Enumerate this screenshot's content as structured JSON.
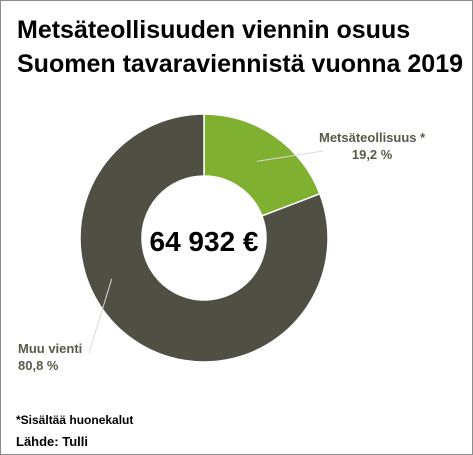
{
  "title_lines": [
    "Metsäteollisuuden viennin osuus",
    "Suomen tavaraviennistä vuonna 2019"
  ],
  "chart_data": {
    "type": "pie",
    "donut": true,
    "center_label": "64 932 €",
    "slices": [
      {
        "label": "Metsäteollisuus *",
        "value": 19.2,
        "value_label": "19,2 %",
        "color": "#7fb030"
      },
      {
        "label": "Muu vienti",
        "value": 80.8,
        "value_label": "80,8 %",
        "color": "#4f4f44"
      }
    ],
    "leader_color": "#d9d9d9"
  },
  "footnote": "*Sisältää huonekalut",
  "source": "Lähde: Tulli"
}
